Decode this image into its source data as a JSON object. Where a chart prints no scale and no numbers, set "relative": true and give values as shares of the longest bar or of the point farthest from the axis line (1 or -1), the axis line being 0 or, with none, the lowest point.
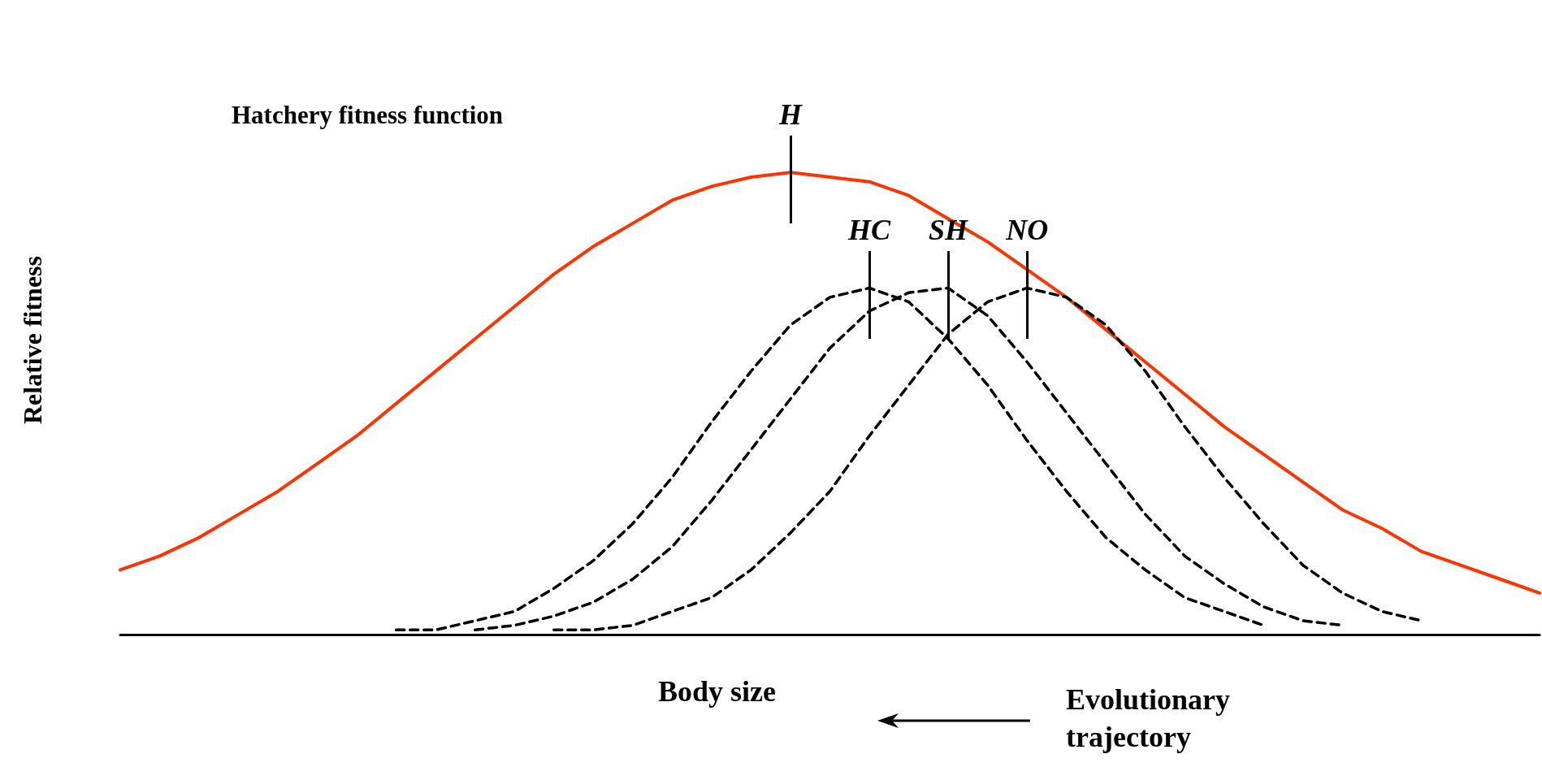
{
  "chart_data": {
    "type": "line",
    "relative": true,
    "grid": false,
    "marker": "none",
    "xlabel": "Body size",
    "ylabel": "Relative fitness",
    "categories": [
      null,
      null,
      null,
      null,
      null,
      null,
      null,
      null,
      null,
      null,
      null,
      null,
      null,
      null,
      null,
      null,
      null,
      null,
      null,
      null,
      null,
      null,
      null,
      null,
      null,
      null,
      null,
      null,
      null,
      null,
      null,
      null,
      null,
      null,
      null,
      null,
      null
    ],
    "annotations": [
      "Hatchery fitness function",
      "Evolutionary trajectory"
    ],
    "series": [
      {
        "name": "H",
        "color": "#ff3300",
        "line_style": "solid",
        "values": [
          0.14,
          0.17,
          0.21,
          0.26,
          0.31,
          0.37,
          0.43,
          0.5,
          0.57,
          0.64,
          0.71,
          0.78,
          0.84,
          0.89,
          0.94,
          0.97,
          0.99,
          1.0,
          0.99,
          0.98,
          0.95,
          0.9,
          0.85,
          0.79,
          0.73,
          0.66,
          0.59,
          0.52,
          0.45,
          0.39,
          0.33,
          0.27,
          0.23,
          0.18,
          0.15,
          0.12,
          0.09
        ]
      },
      {
        "name": "HC",
        "color": "#000000",
        "line_style": "dashed",
        "values": [
          null,
          null,
          null,
          null,
          null,
          null,
          null,
          0.01,
          0.01,
          0.03,
          0.05,
          0.1,
          0.16,
          0.24,
          0.34,
          0.46,
          0.57,
          0.67,
          0.73,
          0.75,
          0.72,
          0.64,
          0.54,
          0.42,
          0.31,
          0.21,
          0.14,
          0.08,
          0.05,
          0.02,
          null,
          null,
          null,
          null,
          null,
          null,
          null
        ]
      },
      {
        "name": "SH",
        "color": "#000000",
        "line_style": "dashed",
        "values": [
          null,
          null,
          null,
          null,
          null,
          null,
          null,
          null,
          null,
          0.01,
          0.02,
          0.04,
          0.07,
          0.12,
          0.19,
          0.29,
          0.4,
          0.51,
          0.62,
          0.7,
          0.74,
          0.75,
          0.69,
          0.59,
          0.48,
          0.37,
          0.26,
          0.17,
          0.11,
          0.06,
          0.03,
          0.02,
          null,
          null,
          null,
          null,
          null
        ]
      },
      {
        "name": "NO",
        "color": "#000000",
        "line_style": "dashed",
        "values": [
          null,
          null,
          null,
          null,
          null,
          null,
          null,
          null,
          null,
          null,
          null,
          0.01,
          0.01,
          0.02,
          0.05,
          0.08,
          0.14,
          0.22,
          0.31,
          0.43,
          0.54,
          0.65,
          0.72,
          0.75,
          0.73,
          0.67,
          0.57,
          0.45,
          0.34,
          0.24,
          0.15,
          0.09,
          0.05,
          0.03,
          null,
          null,
          null
        ]
      }
    ]
  }
}
